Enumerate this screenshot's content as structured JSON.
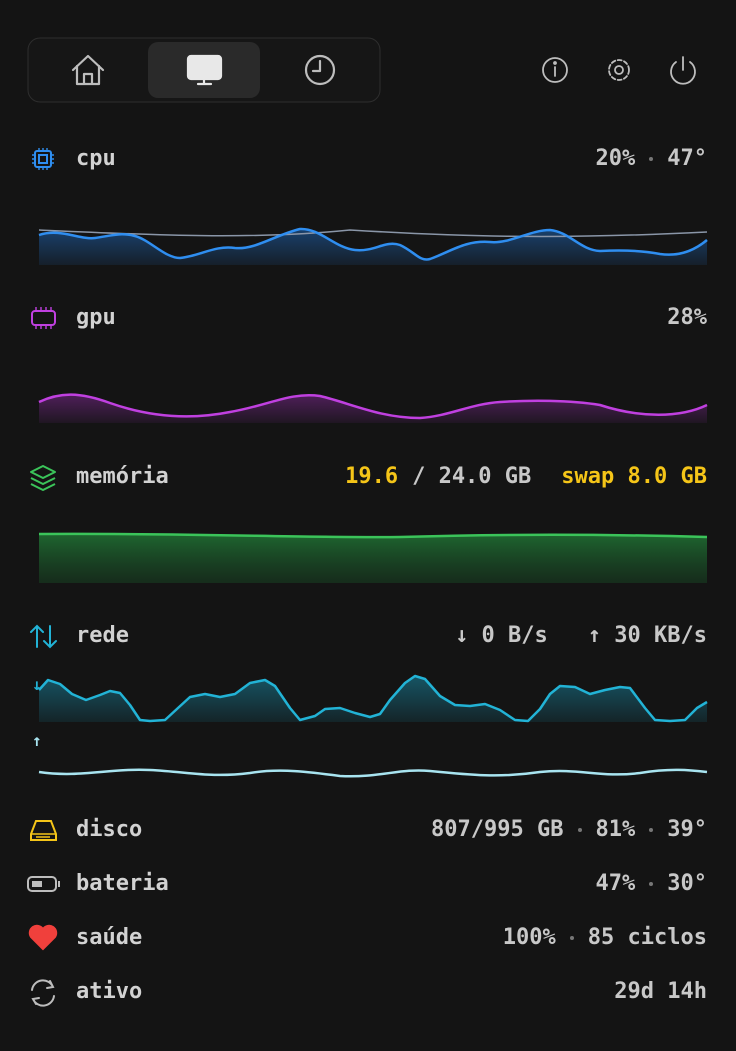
{
  "rows": {
    "cpu": {
      "label": "cpu",
      "usage": "20%",
      "temp": "47°"
    },
    "gpu": {
      "label": "gpu",
      "usage": "28%"
    },
    "memory": {
      "label": "memória",
      "used": "19.6",
      "total": "/ 24.0 GB",
      "swap": "swap 8.0 GB"
    },
    "network": {
      "label": "rede",
      "down": "↓ 0 B/s",
      "up": "↑ 30 KB/s",
      "down_marker": "↓",
      "up_marker": "↑"
    },
    "disk": {
      "label": "disco",
      "space": "807/995 GB",
      "usage": "81%",
      "temp": "39°"
    },
    "battery": {
      "label": "bateria",
      "charge": "47%",
      "temp": "30°"
    },
    "health": {
      "label": "saúde",
      "capacity": "100%",
      "cycles": "85 ciclos"
    },
    "uptime": {
      "label": "ativo",
      "value": "29d 14h"
    }
  }
}
